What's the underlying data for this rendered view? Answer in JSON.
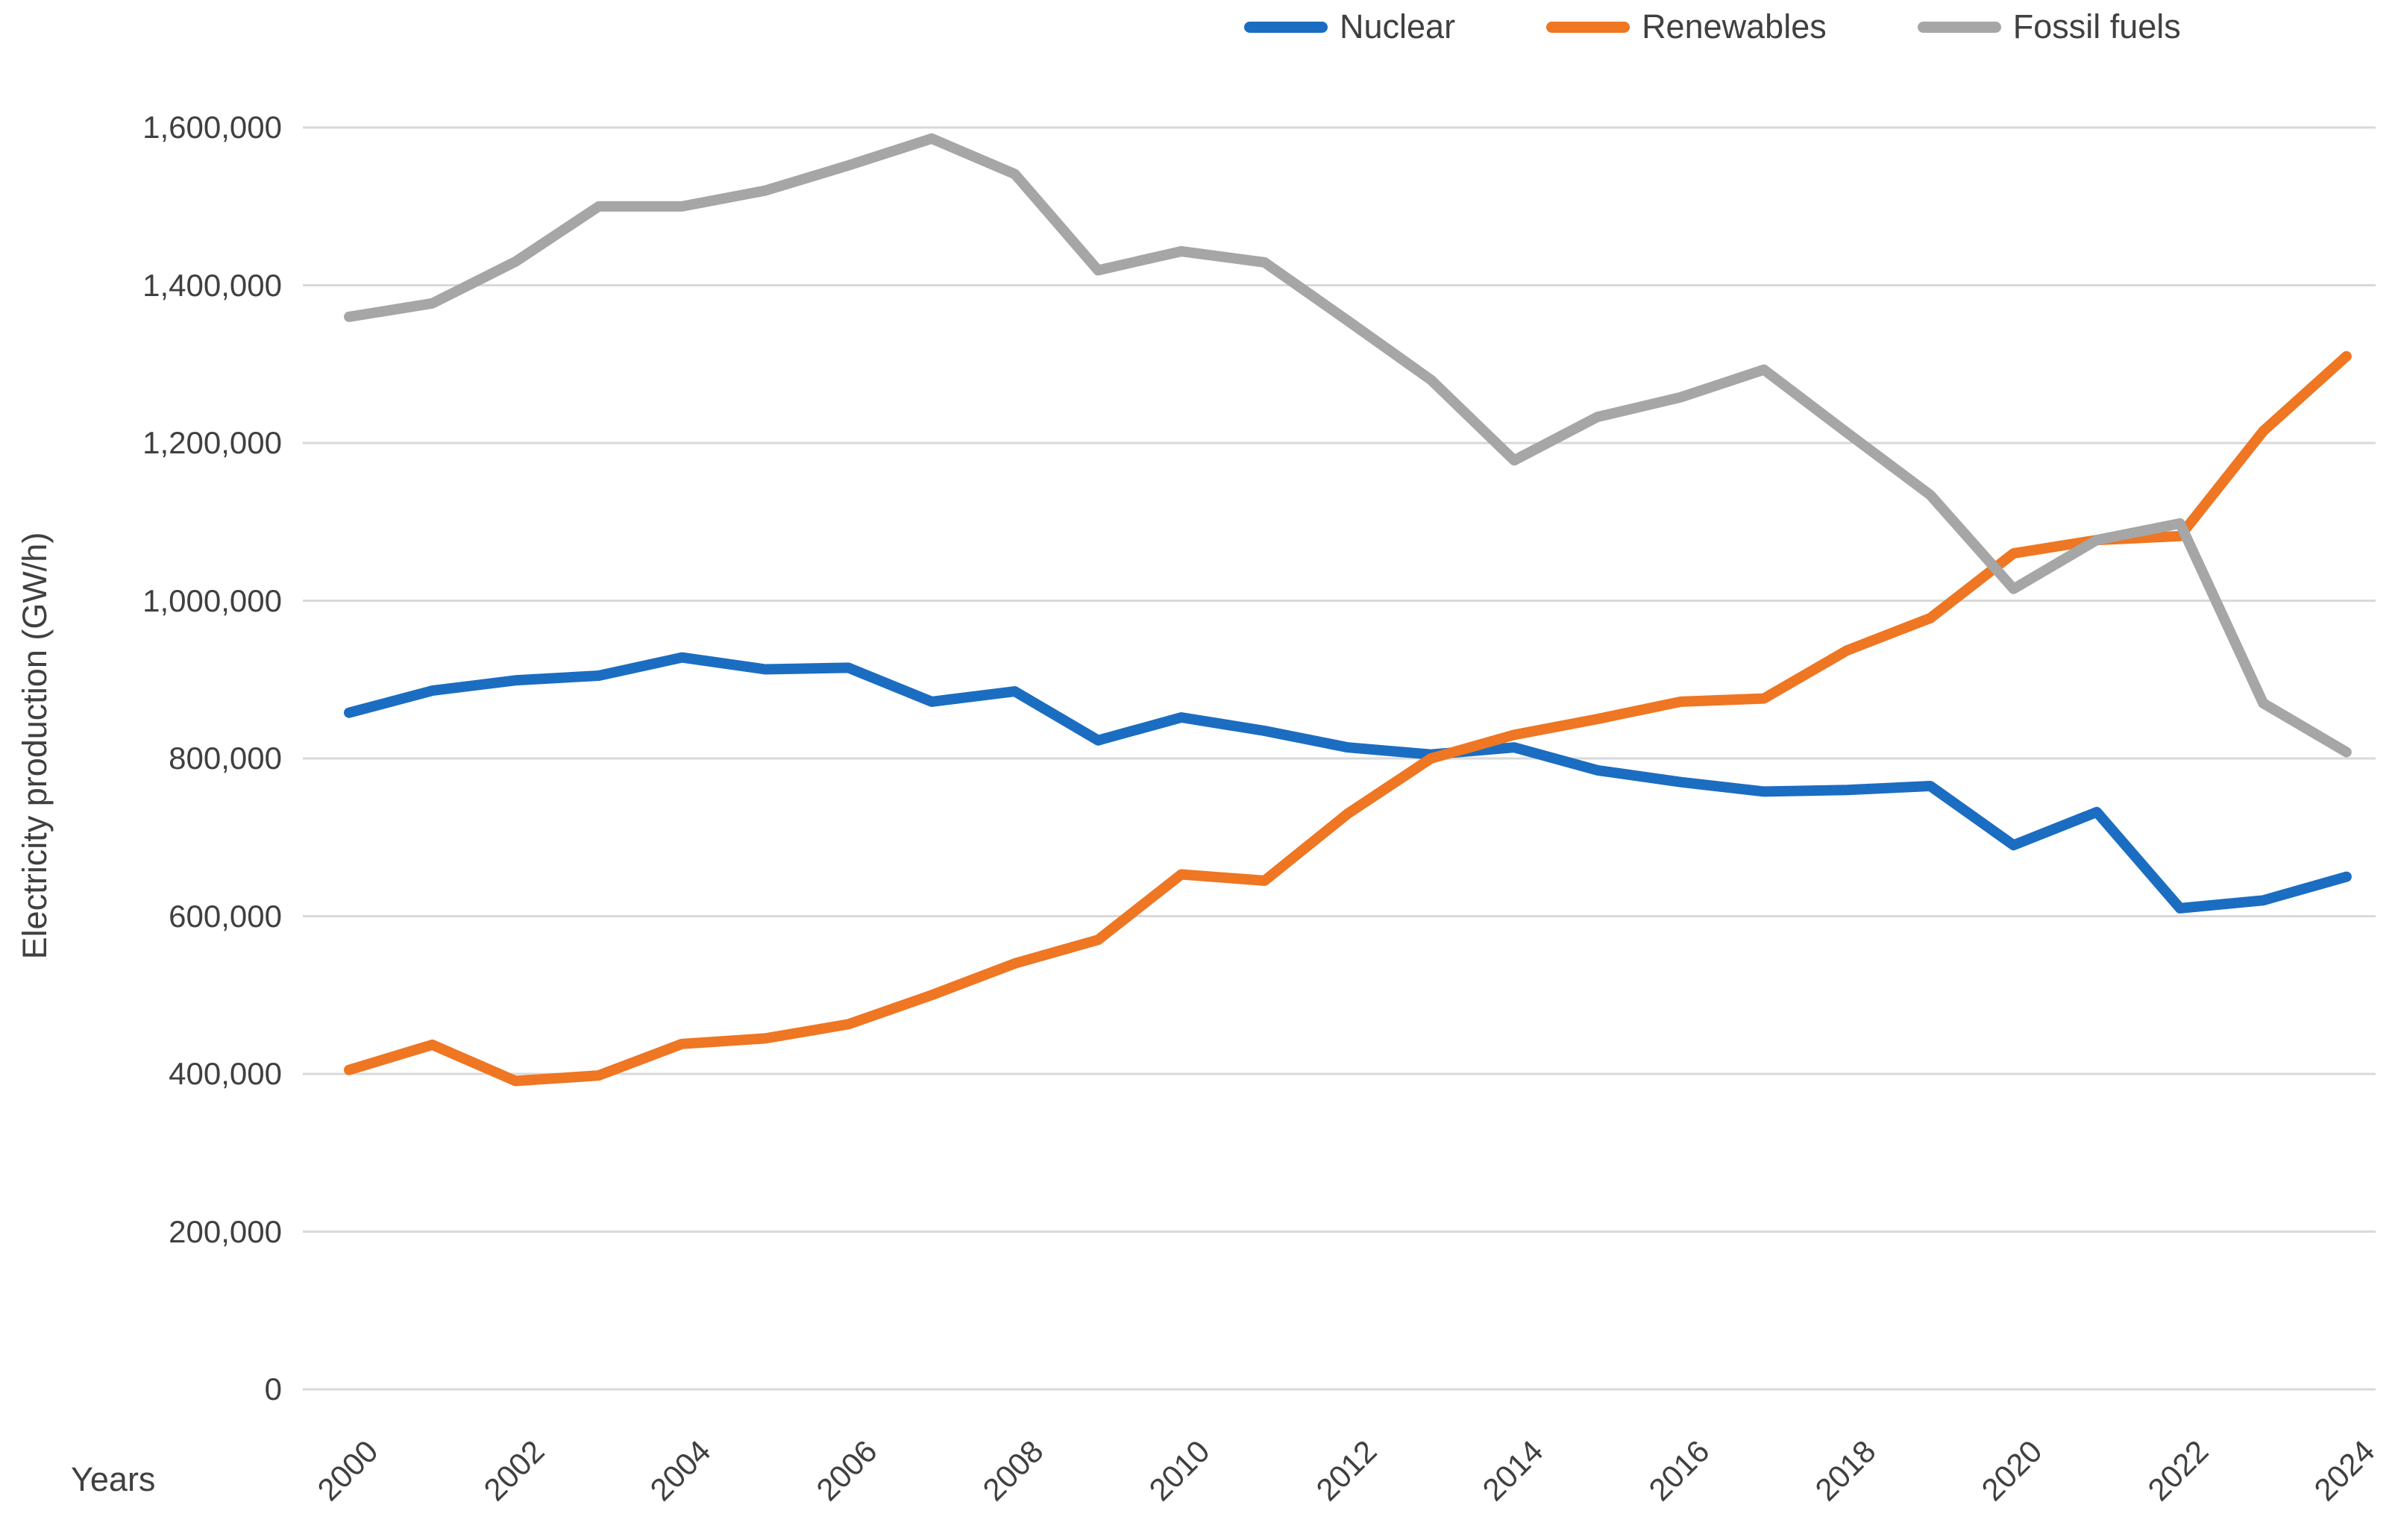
{
  "chart_data": {
    "type": "line",
    "title": "",
    "xlabel": "Years",
    "ylabel": "Electricity production (GW/h)",
    "ylim": [
      0,
      1600000
    ],
    "ytick_step": 200000,
    "grid": "horizontal",
    "legend_position": "top-right",
    "x": [
      2000,
      2001,
      2002,
      2003,
      2004,
      2005,
      2006,
      2007,
      2008,
      2009,
      2010,
      2011,
      2012,
      2013,
      2014,
      2015,
      2016,
      2017,
      2018,
      2019,
      2020,
      2021,
      2022,
      2023,
      2024
    ],
    "series": [
      {
        "name": "Nuclear",
        "color": "#1B6DC1",
        "values": [
          858000,
          886000,
          899000,
          905000,
          928000,
          913000,
          915000,
          872000,
          885000,
          823000,
          852000,
          835000,
          814000,
          805000,
          814000,
          785000,
          770000,
          758000,
          760000,
          765000,
          690000,
          732000,
          610000,
          620000,
          650000
        ]
      },
      {
        "name": "Renewables",
        "color": "#EF7622",
        "values": [
          405000,
          437000,
          391000,
          398000,
          438000,
          445000,
          463000,
          500000,
          540000,
          570000,
          653000,
          645000,
          730000,
          800000,
          830000,
          850000,
          872000,
          876000,
          937000,
          978000,
          1060000,
          1077000,
          1082000,
          1215000,
          1310000
        ]
      },
      {
        "name": "Fossil fuels",
        "color": "#A6A6A6",
        "values": [
          1360000,
          1377000,
          1430000,
          1500000,
          1500000,
          1520000,
          1552000,
          1586000,
          1541000,
          1419000,
          1443000,
          1429000,
          1355000,
          1280000,
          1178000,
          1233000,
          1258000,
          1293000,
          1213000,
          1134000,
          1015000,
          1077000,
          1098000,
          870000,
          808000
        ]
      }
    ],
    "y_tick_labels": [
      "0",
      "200,000",
      "400,000",
      "600,000",
      "800,000",
      "1,000,000",
      "1,200,000",
      "1,400,000",
      "1,600,000"
    ],
    "x_tick_labels": [
      "2000",
      "2002",
      "2004",
      "2006",
      "2008",
      "2010",
      "2012",
      "2014",
      "2016",
      "2018",
      "2020",
      "2022",
      "2024"
    ],
    "gridline_color": "#D9D9D9",
    "text_color": "#404040"
  }
}
